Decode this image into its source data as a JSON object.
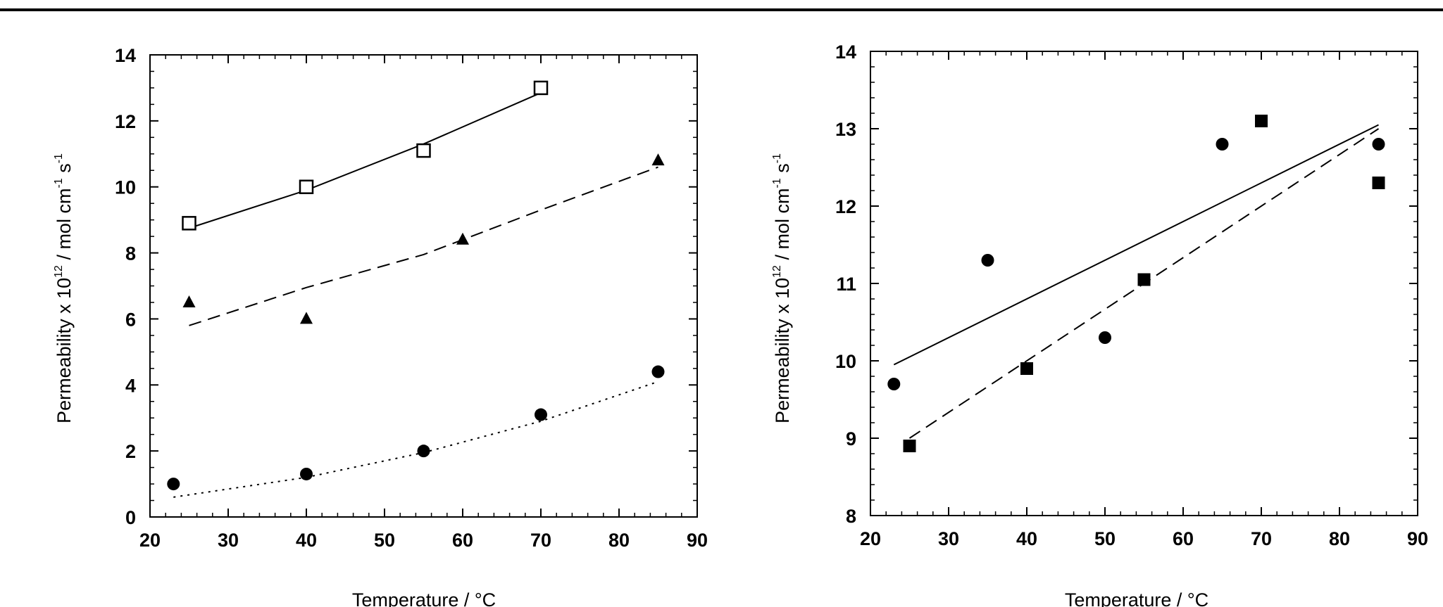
{
  "chart_data": [
    {
      "type": "scatter",
      "title": "",
      "xlabel": "Temperature / °C",
      "ylabel": "Permeability x 10",
      "ylabel_exponent": "12",
      "ylabel_units": " / mol cm",
      "ylabel_units_exp1": "-1",
      "ylabel_units_s": " s",
      "ylabel_units_exp2": "-1",
      "xlim": [
        20,
        90
      ],
      "ylim": [
        0,
        14
      ],
      "x_ticks": [
        "20",
        "30",
        "40",
        "50",
        "60",
        "70",
        "80",
        "90"
      ],
      "y_ticks": [
        "0",
        "2",
        "4",
        "6",
        "8",
        "10",
        "12",
        "14"
      ],
      "grid": false,
      "legend": "none",
      "series": [
        {
          "marker": "open-square",
          "x": [
            25,
            40,
            55,
            70
          ],
          "y": [
            8.9,
            10.0,
            11.1,
            13.0
          ],
          "fit": {
            "style": "solid",
            "x": [
              25,
              40,
              55,
              70
            ],
            "y": [
              8.75,
              9.9,
              11.3,
              12.85
            ]
          }
        },
        {
          "marker": "filled-triangle",
          "x": [
            25,
            40,
            60,
            85
          ],
          "y": [
            6.5,
            6.0,
            8.4,
            10.8
          ],
          "fit": {
            "style": "dashed",
            "x": [
              25,
              40,
              55,
              70,
              85
            ],
            "y": [
              5.8,
              6.95,
              7.95,
              9.3,
              10.6
            ]
          }
        },
        {
          "marker": "filled-circle",
          "x": [
            23,
            40,
            55,
            70,
            85
          ],
          "y": [
            1.0,
            1.3,
            2.0,
            3.1,
            4.4
          ],
          "fit": {
            "style": "dotted",
            "x": [
              23,
              40,
              55,
              70,
              85
            ],
            "y": [
              0.6,
              1.2,
              1.95,
              2.9,
              4.1
            ]
          }
        }
      ]
    },
    {
      "type": "scatter",
      "title": "",
      "xlabel": "Temperature / °C",
      "ylabel": "Permeability x 10",
      "ylabel_exponent": "12",
      "ylabel_units": " / mol cm",
      "ylabel_units_exp1": "-1",
      "ylabel_units_s": " s",
      "ylabel_units_exp2": "-1",
      "xlim": [
        20,
        90
      ],
      "ylim": [
        8,
        14
      ],
      "x_ticks": [
        "20",
        "30",
        "40",
        "50",
        "60",
        "70",
        "80",
        "90"
      ],
      "y_ticks": [
        "8",
        "9",
        "10",
        "11",
        "12",
        "13",
        "14"
      ],
      "grid": false,
      "legend": "none",
      "series": [
        {
          "marker": "filled-circle",
          "x": [
            23,
            35,
            50,
            65,
            85
          ],
          "y": [
            9.7,
            11.3,
            10.3,
            12.8,
            12.8
          ],
          "fit": {
            "style": "solid",
            "x": [
              23,
              85
            ],
            "y": [
              9.95,
              13.05
            ]
          }
        },
        {
          "marker": "filled-square",
          "x": [
            25,
            40,
            55,
            70,
            85
          ],
          "y": [
            8.9,
            9.9,
            11.05,
            13.1,
            12.3
          ],
          "fit": {
            "style": "dashed",
            "x": [
              25,
              85
            ],
            "y": [
              9.0,
              13.0
            ]
          }
        }
      ]
    }
  ]
}
